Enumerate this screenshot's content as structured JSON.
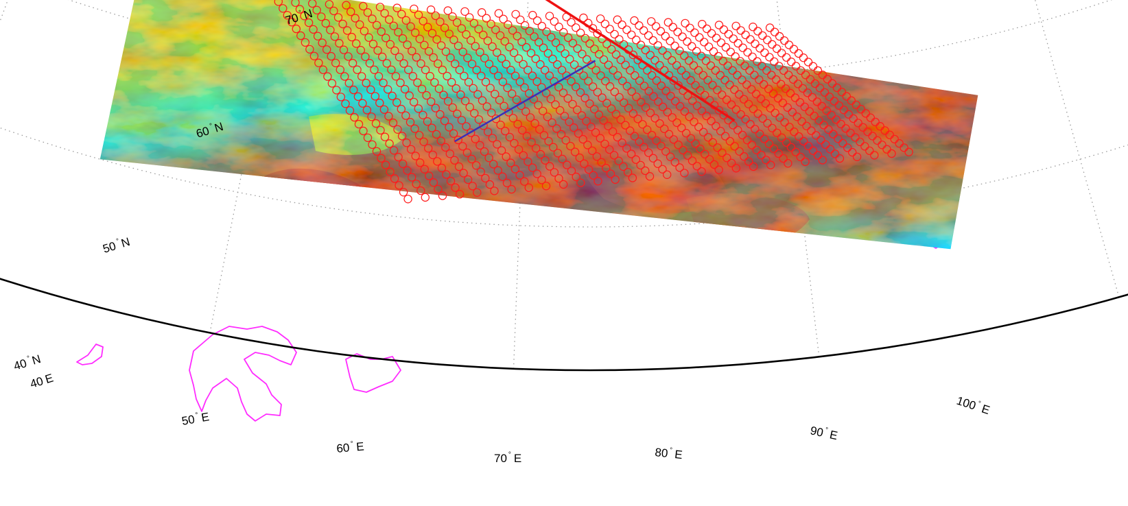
{
  "map": {
    "projection": "conic",
    "lon_range": [
      40,
      105
    ],
    "lat_range": [
      40,
      70
    ],
    "grid": true,
    "colors": {
      "frame": "#000000",
      "grid": "#9a9a9a",
      "coastline": "#ff2bff",
      "footprint_circle": "#ff1a1a",
      "ground_track_red": "#ee1111",
      "ground_track_blue": "#3a2fb8"
    },
    "satellite_image": {
      "colormap": "jet",
      "corners_lonlat": {
        "top_left": [
          54.5,
          63.6
        ],
        "top_right": [
          87.0,
          56.1
        ],
        "bottom_right": [
          84.9,
          46.0
        ],
        "bottom_left": [
          55.0,
          50.0
        ]
      }
    },
    "footprint_grid": {
      "columns": 30,
      "rows": 30,
      "corners_lonlat": {
        "top_left": [
          60.1,
          63.6
        ],
        "top_right": [
          79.6,
          63.2
        ],
        "bottom_right": [
          84.1,
          53.2
        ],
        "bottom_left": [
          66.0,
          51.3
        ]
      }
    },
    "ground_tracks": [
      {
        "color": "red",
        "from_lonlat": [
          70.0,
          66.6
        ],
        "to_lonlat": [
          77.9,
          57.0
        ]
      },
      {
        "color": "blue",
        "from_lonlat": [
          72.7,
          61.6
        ],
        "to_lonlat": [
          67.5,
          55.6
        ]
      }
    ]
  },
  "labels": {
    "lat": [
      {
        "value": "70",
        "suffix": "N"
      },
      {
        "value": "60",
        "suffix": "N"
      },
      {
        "value": "50",
        "suffix": "N"
      },
      {
        "value": "40",
        "suffix": "N"
      }
    ],
    "lon": [
      {
        "value": "40",
        "suffix": "E"
      },
      {
        "value": "50",
        "suffix": "E"
      },
      {
        "value": "60",
        "suffix": "E"
      },
      {
        "value": "70",
        "suffix": "E"
      },
      {
        "value": "80",
        "suffix": "E"
      },
      {
        "value": "90",
        "suffix": "E"
      },
      {
        "value": "100",
        "suffix": "E"
      }
    ]
  }
}
